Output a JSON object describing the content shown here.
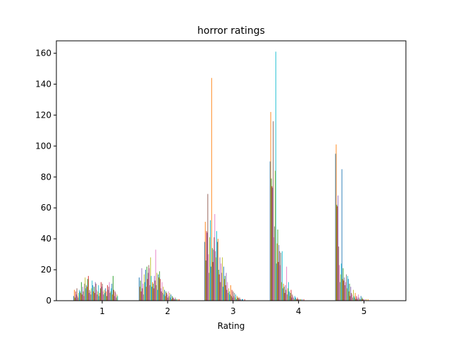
{
  "chart_data": {
    "type": "bar",
    "title": "horror ratings",
    "xlabel": "Rating",
    "ylabel": "",
    "ylim": [
      0,
      168
    ],
    "xlim": [
      0.3,
      5.64
    ],
    "yticks": [
      0,
      20,
      40,
      60,
      80,
      100,
      120,
      140,
      160
    ],
    "xticks": [
      1,
      2,
      3,
      4,
      5
    ],
    "grid": false,
    "legend": "none",
    "series_colors": [
      "#1f77b4",
      "#ff7f0e",
      "#2ca02c",
      "#d62728",
      "#9467bd",
      "#8c564b",
      "#e377c2",
      "#7f7f7f",
      "#bcbd22",
      "#17becf"
    ],
    "group_centers": [
      0.9,
      1.9,
      2.9,
      3.9,
      4.9
    ],
    "group_width": 0.68,
    "groups": [
      {
        "category": "1",
        "values": [
          3,
          7,
          2,
          6,
          4,
          8,
          3,
          2,
          5,
          7,
          6,
          5,
          12,
          4,
          9,
          6,
          3,
          11,
          15,
          8,
          10,
          9,
          14,
          16,
          5,
          7,
          6,
          4,
          8,
          13,
          10,
          6,
          9,
          5,
          12,
          11,
          7,
          4,
          6,
          10,
          3,
          5,
          8,
          12,
          9,
          11,
          6,
          4,
          7,
          5,
          8,
          6,
          3,
          10,
          7,
          9,
          12,
          5,
          6,
          8,
          11,
          4,
          16,
          7,
          3,
          6,
          5,
          2,
          4,
          3
        ]
      },
      {
        "category": "2",
        "values": [
          15,
          9,
          13,
          6,
          21,
          8,
          11,
          4,
          17,
          12,
          20,
          9,
          22,
          14,
          18,
          23,
          21,
          10,
          28,
          16,
          9,
          12,
          11,
          8,
          16,
          13,
          33,
          10,
          18,
          7,
          17,
          15,
          19,
          14,
          8,
          6,
          12,
          5,
          9,
          4,
          7,
          3,
          6,
          5,
          4,
          2,
          6,
          3,
          5,
          2,
          4,
          1,
          3,
          2,
          2,
          1,
          1,
          2,
          1,
          1,
          0,
          1,
          0,
          1,
          0,
          0,
          0,
          0,
          0,
          0
        ]
      },
      {
        "category": "3",
        "values": [
          38,
          51,
          26,
          45,
          44,
          69,
          30,
          18,
          41,
          52,
          22,
          144,
          34,
          25,
          33,
          41,
          56,
          32,
          28,
          45,
          38,
          40,
          20,
          17,
          28,
          12,
          24,
          18,
          28,
          9,
          22,
          14,
          16,
          10,
          18,
          7,
          12,
          5,
          8,
          6,
          4,
          10,
          3,
          7,
          2,
          6,
          3,
          5,
          2,
          4,
          1,
          3,
          2,
          2,
          1,
          2,
          1,
          1,
          0,
          1,
          1,
          0,
          0,
          1,
          0,
          0,
          0,
          0,
          0,
          0
        ]
      },
      {
        "category": "4",
        "values": [
          90,
          122,
          79,
          74,
          73,
          116,
          41,
          48,
          84,
          161,
          24,
          37,
          46,
          25,
          36,
          32,
          23,
          31,
          12,
          32,
          8,
          11,
          9,
          5,
          10,
          7,
          22,
          4,
          8,
          12,
          6,
          3,
          5,
          7,
          2,
          4,
          3,
          2,
          1,
          3,
          2,
          1,
          1,
          2,
          1,
          1,
          0,
          1,
          1,
          0,
          1,
          0,
          0,
          1,
          0,
          0,
          0,
          0,
          0,
          0,
          0,
          0,
          0,
          0,
          0,
          0,
          0,
          0,
          0,
          0
        ]
      },
      {
        "category": "5",
        "values": [
          95,
          101,
          62,
          61,
          68,
          35,
          23,
          12,
          17,
          24,
          85,
          14,
          21,
          13,
          15,
          10,
          12,
          17,
          8,
          16,
          14,
          6,
          11,
          3,
          9,
          5,
          4,
          2,
          7,
          3,
          2,
          5,
          1,
          3,
          2,
          1,
          4,
          2,
          1,
          1,
          3,
          1,
          2,
          1,
          1,
          0,
          1,
          0,
          1,
          0,
          0,
          1,
          0,
          0,
          0,
          0,
          0,
          0,
          0,
          0,
          0,
          0,
          0,
          0,
          0,
          0,
          0,
          0,
          0,
          0
        ]
      }
    ]
  }
}
